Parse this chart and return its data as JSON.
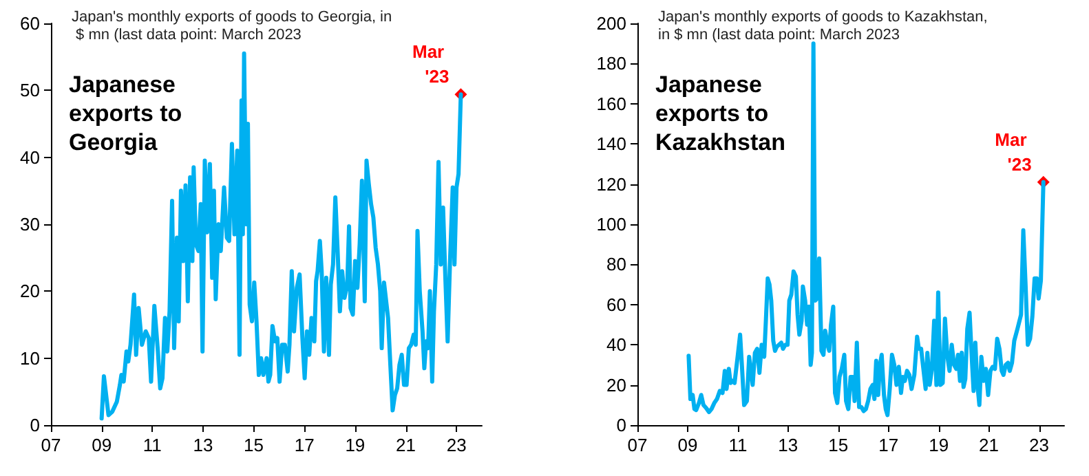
{
  "chart_data": [
    {
      "type": "line",
      "title": "Japanese exports to Georgia",
      "subtitle": "Japan's monthly exports of goods to Georgia, in $ mn (last data point: March 2023",
      "xlim": [
        2007,
        2024
      ],
      "xticks": [
        {
          "value": 2007,
          "label": "07"
        },
        {
          "value": 2009,
          "label": "09"
        },
        {
          "value": 2011,
          "label": "11"
        },
        {
          "value": 2013,
          "label": "13"
        },
        {
          "value": 2015,
          "label": "15"
        },
        {
          "value": 2017,
          "label": "17"
        },
        {
          "value": 2019,
          "label": "19"
        },
        {
          "value": 2021,
          "label": "21"
        },
        {
          "value": 2023,
          "label": "23"
        }
      ],
      "ylim": [
        0,
        60
      ],
      "yticks": [
        0,
        10,
        20,
        30,
        40,
        50,
        60
      ],
      "annotations": [
        {
          "text": "Mar '23",
          "x": 2023.17,
          "y": 49.4
        }
      ],
      "series": [
        {
          "color": "#00b0f0",
          "x": [
            2009.0,
            2009.09,
            2009.27,
            2009.42,
            2009.6,
            2009.72,
            2009.78,
            2009.87,
            2009.98,
            2010.05,
            2010.14,
            2010.28,
            2010.36,
            2010.46,
            2010.59,
            2010.74,
            2010.86,
            2010.95,
            2011.08,
            2011.22,
            2011.31,
            2011.4,
            2011.5,
            2011.59,
            2011.68,
            2011.78,
            2011.86,
            2011.97,
            2012.04,
            2012.13,
            2012.22,
            2012.31,
            2012.4,
            2012.49,
            2012.58,
            2012.63,
            2012.72,
            2012.82,
            2012.91,
            2012.98,
            2013.07,
            2013.16,
            2013.27,
            2013.36,
            2013.43,
            2013.5,
            2013.61,
            2013.7,
            2013.83,
            2013.94,
            2014.03,
            2014.14,
            2014.24,
            2014.35,
            2014.44,
            2014.52,
            2014.57,
            2014.62,
            2014.7,
            2014.77,
            2014.84,
            2014.93,
            2015.02,
            2015.11,
            2015.2,
            2015.29,
            2015.38,
            2015.51,
            2015.58,
            2015.65,
            2015.74,
            2015.84,
            2015.93,
            2016.02,
            2016.12,
            2016.23,
            2016.34,
            2016.41,
            2016.5,
            2016.59,
            2016.7,
            2016.81,
            2016.92,
            2017.01,
            2017.1,
            2017.19,
            2017.28,
            2017.39,
            2017.46,
            2017.52,
            2017.61,
            2017.68,
            2017.77,
            2017.86,
            2017.97,
            2018.04,
            2018.13,
            2018.22,
            2018.31,
            2018.4,
            2018.49,
            2018.58,
            2018.69,
            2018.76,
            2018.82,
            2018.91,
            2019.0,
            2019.09,
            2019.18,
            2019.27,
            2019.38,
            2019.45,
            2019.54,
            2019.63,
            2019.72,
            2019.81,
            2019.9,
            2019.99,
            2020.05,
            2020.14,
            2020.21,
            2020.3,
            2020.39,
            2020.48,
            2020.57,
            2020.66,
            2020.75,
            2020.84,
            2020.93,
            2021.03,
            2021.12,
            2021.21,
            2021.31,
            2021.39,
            2021.46,
            2021.55,
            2021.66,
            2021.73,
            2021.8,
            2021.88,
            2021.95,
            2022.04,
            2022.11,
            2022.2,
            2022.29,
            2022.38,
            2022.47,
            2022.56,
            2022.65,
            2022.74,
            2022.85,
            2022.92,
            2023.0,
            2023.08,
            2023.17
          ],
          "values": [
            1,
            7.3,
            1.5,
            2,
            3.5,
            6,
            7.5,
            6.5,
            11,
            9.5,
            12,
            19.5,
            10.5,
            17.5,
            12,
            14,
            13,
            6.5,
            17.8,
            11,
            5.5,
            7,
            16,
            11,
            17,
            33.5,
            11.5,
            28,
            15.5,
            35,
            24.5,
            35.8,
            18.5,
            37,
            24.5,
            38.5,
            27,
            26,
            33,
            11,
            39.5,
            28.8,
            39,
            22,
            35,
            18.8,
            30,
            26,
            35.5,
            28,
            27.5,
            42,
            28.5,
            41,
            10.5,
            48.5,
            28.5,
            55.5,
            30,
            45,
            18,
            15.5,
            21.3,
            15.5,
            7.5,
            10,
            7.5,
            10,
            6.5,
            7.5,
            14.8,
            12.5,
            13,
            6.5,
            12,
            12,
            8,
            12,
            23,
            14,
            20.5,
            22.5,
            13,
            7,
            14,
            10.5,
            16,
            12.5,
            21.5,
            23,
            27.5,
            23,
            11,
            22,
            10.5,
            21,
            24,
            34,
            26,
            17,
            23,
            19,
            21,
            29.7,
            17.5,
            16.5,
            24.5,
            20.5,
            27,
            36.5,
            18.5,
            39.5,
            36,
            33,
            31,
            26.5,
            24,
            20,
            11.5,
            21.3,
            19,
            16,
            9,
            2.2,
            4.5,
            5.5,
            9,
            10.5,
            6,
            6,
            11.5,
            12,
            13.5,
            12,
            29,
            20,
            14,
            8.5,
            12.5,
            11.5,
            20,
            6.5,
            17,
            24,
            39.3,
            24,
            32.5,
            22,
            12.5,
            24,
            35.5,
            24,
            35.5,
            37.5,
            49.4
          ]
        }
      ]
    },
    {
      "type": "line",
      "title": "Japanese exports to Kazakhstan",
      "subtitle": "Japan's monthly exports of goods to Kazakhstan, in $ mn (last data point: March 2023",
      "xlim": [
        2007,
        2024
      ],
      "xticks": [
        {
          "value": 2007,
          "label": "07"
        },
        {
          "value": 2009,
          "label": "09"
        },
        {
          "value": 2011,
          "label": "11"
        },
        {
          "value": 2013,
          "label": "13"
        },
        {
          "value": 2015,
          "label": "15"
        },
        {
          "value": 2017,
          "label": "17"
        },
        {
          "value": 2019,
          "label": "19"
        },
        {
          "value": 2021,
          "label": "21"
        },
        {
          "value": 2023,
          "label": "23"
        }
      ],
      "ylim": [
        0,
        200
      ],
      "yticks": [
        0,
        20,
        40,
        60,
        80,
        100,
        120,
        140,
        160,
        180,
        200
      ],
      "annotations": [
        {
          "text": "Mar '23",
          "x": 2023.17,
          "y": 121
        }
      ],
      "series": [
        {
          "color": "#00b0f0",
          "x": [
            2009.04,
            2009.11,
            2009.2,
            2009.27,
            2009.34,
            2009.45,
            2009.54,
            2009.63,
            2009.74,
            2009.85,
            2009.95,
            2010.06,
            2010.17,
            2010.28,
            2010.39,
            2010.48,
            2010.55,
            2010.64,
            2010.71,
            2010.78,
            2010.87,
            2011.0,
            2011.09,
            2011.16,
            2011.25,
            2011.36,
            2011.45,
            2011.52,
            2011.59,
            2011.68,
            2011.77,
            2011.86,
            2011.95,
            2012.05,
            2012.12,
            2012.19,
            2012.26,
            2012.33,
            2012.41,
            2012.48,
            2012.55,
            2012.64,
            2012.73,
            2012.8,
            2012.89,
            2012.98,
            2013.05,
            2013.13,
            2013.22,
            2013.31,
            2013.38,
            2013.45,
            2013.54,
            2013.59,
            2013.68,
            2013.76,
            2013.83,
            2013.9,
            2013.95,
            2014.01,
            2014.08,
            2014.15,
            2014.24,
            2014.33,
            2014.41,
            2014.48,
            2014.57,
            2014.64,
            2014.71,
            2014.8,
            2014.87,
            2014.96,
            2015.05,
            2015.14,
            2015.24,
            2015.31,
            2015.4,
            2015.49,
            2015.58,
            2015.65,
            2015.74,
            2015.83,
            2015.92,
            2016.01,
            2016.1,
            2016.19,
            2016.28,
            2016.37,
            2016.44,
            2016.51,
            2016.59,
            2016.66,
            2016.73,
            2016.82,
            2016.89,
            2016.96,
            2017.05,
            2017.14,
            2017.23,
            2017.32,
            2017.41,
            2017.5,
            2017.57,
            2017.65,
            2017.74,
            2017.83,
            2017.92,
            2018.03,
            2018.14,
            2018.21,
            2018.3,
            2018.39,
            2018.48,
            2018.55,
            2018.64,
            2018.73,
            2018.82,
            2018.91,
            2018.98,
            2019.07,
            2019.16,
            2019.25,
            2019.34,
            2019.43,
            2019.52,
            2019.61,
            2019.7,
            2019.77,
            2019.85,
            2019.92,
            2019.99,
            2020.06,
            2020.14,
            2020.23,
            2020.32,
            2020.39,
            2020.46,
            2020.53,
            2020.62,
            2020.7,
            2020.79,
            2020.88,
            2020.97,
            2021.06,
            2021.15,
            2021.24,
            2021.33,
            2021.42,
            2021.51,
            2021.58,
            2021.67,
            2021.76,
            2021.83,
            2021.92,
            2022.01,
            2022.14,
            2022.28,
            2022.37,
            2022.46,
            2022.55,
            2022.64,
            2022.73,
            2022.82,
            2022.91,
            2022.98,
            2023.07,
            2023.17
          ],
          "values": [
            34.5,
            13,
            15,
            8,
            7.5,
            11,
            15,
            10,
            8.5,
            6.5,
            8,
            11,
            13,
            17,
            16,
            27,
            18,
            28,
            21,
            22,
            21,
            35,
            45,
            30,
            10,
            12,
            34,
            27,
            20,
            36,
            38,
            26,
            40,
            34,
            53,
            73,
            70,
            62,
            42,
            37,
            39,
            40,
            41,
            38,
            40,
            40,
            62,
            65,
            76.5,
            74,
            55,
            45,
            52,
            69,
            62,
            50,
            59,
            30,
            36,
            190,
            62,
            63,
            83,
            37,
            35,
            47,
            40,
            37,
            50,
            59,
            16,
            11,
            24,
            28,
            35,
            12,
            8,
            24,
            24,
            12,
            41,
            9,
            9,
            7,
            8,
            12,
            18,
            20,
            13,
            32,
            15,
            30,
            35,
            15,
            8,
            5,
            18,
            35,
            30,
            20,
            29,
            16,
            24,
            22,
            27,
            25,
            18,
            25,
            44,
            38,
            38,
            28,
            18,
            36,
            20,
            28,
            52,
            20,
            66,
            20,
            21,
            53,
            35,
            27,
            40,
            30,
            28,
            35,
            22,
            36,
            19,
            23,
            48,
            56,
            33,
            17,
            41,
            22,
            10,
            34,
            22,
            28,
            15,
            27,
            29,
            28,
            43,
            38,
            27,
            25,
            30,
            31,
            27,
            31,
            42,
            48,
            55,
            97,
            70,
            40,
            43,
            54,
            73,
            73,
            63,
            72,
            121
          ]
        }
      ]
    }
  ]
}
